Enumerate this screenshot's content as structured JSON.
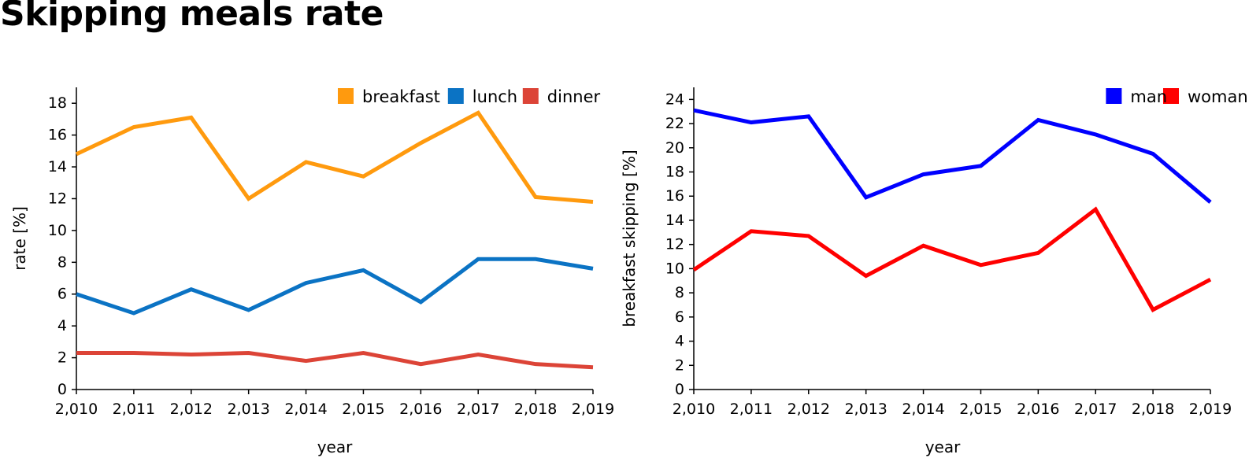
{
  "title": "Skipping meals rate",
  "chart_data": [
    {
      "type": "line",
      "x": [
        2010,
        2011,
        2012,
        2013,
        2014,
        2015,
        2016,
        2017,
        2018,
        2019
      ],
      "x_tick_labels": [
        "2,010",
        "2,011",
        "2,012",
        "2,013",
        "2,014",
        "2,015",
        "2,016",
        "2,017",
        "2,018",
        "2,019"
      ],
      "xlabel": "year",
      "ylabel": "rate [%]",
      "ylim": [
        0,
        19
      ],
      "yticks": [
        0,
        2,
        4,
        6,
        8,
        10,
        12,
        14,
        16,
        18
      ],
      "legend_position": "top-right",
      "grid": false,
      "series": [
        {
          "name": "breakfast",
          "color": "#ff9a0e",
          "values": [
            14.8,
            16.5,
            17.1,
            12.0,
            14.3,
            13.4,
            15.5,
            17.4,
            12.1,
            11.8
          ]
        },
        {
          "name": "lunch",
          "color": "#0b73c4",
          "values": [
            6.0,
            4.8,
            6.3,
            5.0,
            6.7,
            7.5,
            5.5,
            8.2,
            8.2,
            7.6
          ]
        },
        {
          "name": "dinner",
          "color": "#dc4437",
          "values": [
            2.3,
            2.3,
            2.2,
            2.3,
            1.8,
            2.3,
            1.6,
            2.2,
            1.6,
            1.4
          ]
        }
      ]
    },
    {
      "type": "line",
      "x": [
        2010,
        2011,
        2012,
        2013,
        2014,
        2015,
        2016,
        2017,
        2018,
        2019
      ],
      "x_tick_labels": [
        "2,010",
        "2,011",
        "2,012",
        "2,013",
        "2,014",
        "2,015",
        "2,016",
        "2,017",
        "2,018",
        "2,019"
      ],
      "xlabel": "year",
      "ylabel": "breakfast skipping [%]",
      "ylim": [
        0,
        25
      ],
      "yticks": [
        0,
        2,
        4,
        6,
        8,
        10,
        12,
        14,
        16,
        18,
        20,
        22,
        24
      ],
      "legend_position": "top-right",
      "grid": false,
      "series": [
        {
          "name": "man",
          "color": "#0000ff",
          "values": [
            23.1,
            22.1,
            22.6,
            15.9,
            17.8,
            18.5,
            22.3,
            21.1,
            19.5,
            15.5
          ]
        },
        {
          "name": "woman",
          "color": "#ff0000",
          "values": [
            9.9,
            13.1,
            12.7,
            9.4,
            11.9,
            10.3,
            11.3,
            14.9,
            6.6,
            9.1
          ]
        }
      ]
    }
  ]
}
